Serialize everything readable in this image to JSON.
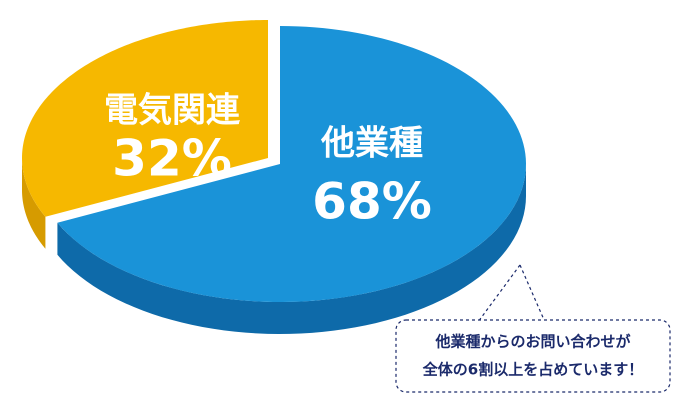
{
  "chart_data": {
    "type": "pie",
    "categories": [
      "他業種",
      "電気関連"
    ],
    "values": [
      68,
      32
    ],
    "value_labels": [
      "68%",
      "32%"
    ],
    "colors": [
      "#1a93d8",
      "#f6b800"
    ],
    "side_colors": [
      "#0e6aa9",
      "#d69b00"
    ],
    "annotation": [
      "他業種からのお問い合わせが",
      "全体の6割以上を占めています！"
    ]
  }
}
